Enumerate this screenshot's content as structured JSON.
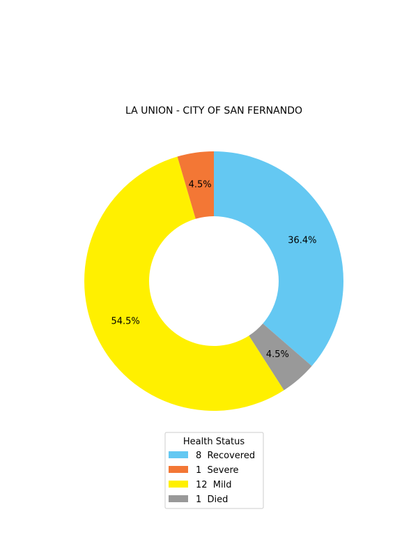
{
  "chart_data": {
    "type": "pie",
    "donut": true,
    "title": "LA UNION - CITY OF SAN FERNANDO",
    "legend_title": "Health Status",
    "legend_placement": "bottom-center",
    "slices": [
      {
        "name": "Recovered",
        "value": 8,
        "label": "36.4%",
        "legend": "8  Recovered",
        "color": "#64c8f2"
      },
      {
        "name": "Died",
        "value": 1,
        "label": "4.5%",
        "legend": "1  Died",
        "color": "#999999"
      },
      {
        "name": "Mild",
        "value": 12,
        "label": "54.5%",
        "legend": "12  Mild",
        "color": "#fff000"
      },
      {
        "name": "Severe",
        "value": 1,
        "label": "4.5%",
        "legend": "1  Severe",
        "color": "#f37735"
      }
    ],
    "legend_order": [
      "Recovered",
      "Severe",
      "Mild",
      "Died"
    ],
    "start_angle_deg": 90,
    "direction": "clockwise"
  }
}
